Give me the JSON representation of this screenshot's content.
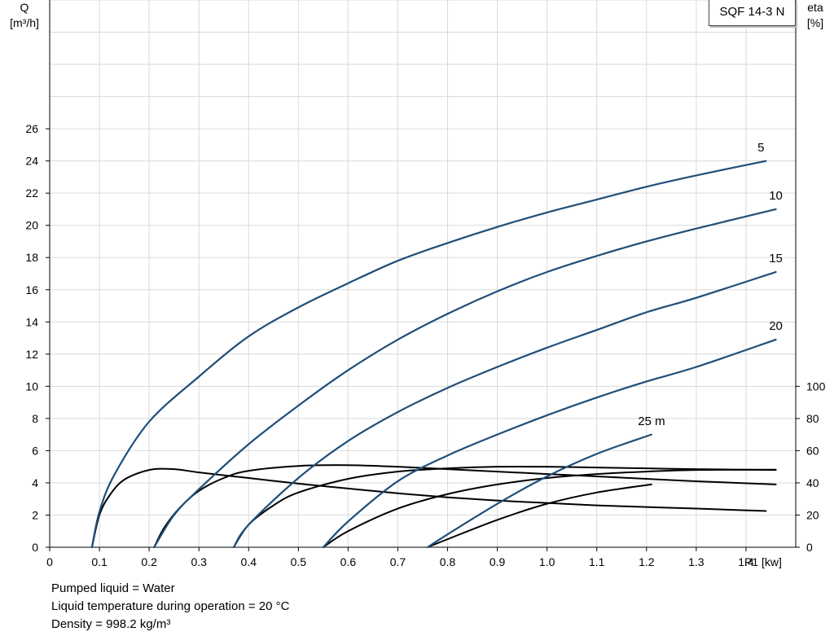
{
  "chart_data": {
    "type": "line",
    "title": "",
    "model": "SQF 14-3 N",
    "x_axis": {
      "label": "P1 [kw]",
      "range": [
        0,
        1.5
      ],
      "ticks": [
        0,
        0.1,
        0.2,
        0.3,
        0.4,
        0.5,
        0.6,
        0.7,
        0.8,
        0.9,
        1.0,
        1.1,
        1.2,
        1.3,
        1.4
      ],
      "tick_labels": [
        "0",
        "0.1",
        "0.2",
        "0.3",
        "0.4",
        "0.5",
        "0.6",
        "0.7",
        "0.8",
        "0.9",
        "1.0",
        "1.1",
        "1.2",
        "1.3",
        "1.4"
      ]
    },
    "y_left": {
      "label_line1": "Q",
      "label_line2": "[m³/h]",
      "range": [
        0,
        34
      ],
      "ticks": [
        0,
        2,
        4,
        6,
        8,
        10,
        12,
        14,
        16,
        18,
        20,
        22,
        24,
        26
      ],
      "tick_labels": [
        "0",
        "2",
        "4",
        "6",
        "8",
        "10",
        "12",
        "14",
        "16",
        "18",
        "20",
        "22",
        "24",
        "26"
      ]
    },
    "y_right": {
      "label_line1": "eta",
      "label_line2": "[%]",
      "range": [
        0,
        340
      ],
      "ticks": [
        0,
        20,
        40,
        60,
        80,
        100
      ],
      "tick_labels": [
        "0",
        "20",
        "40",
        "60",
        "80",
        "100"
      ]
    },
    "grid": true,
    "flow_series": [
      {
        "name": "5",
        "color": "#1f4e79",
        "points": [
          [
            0.085,
            0
          ],
          [
            0.1,
            2.2
          ],
          [
            0.13,
            4.5
          ],
          [
            0.2,
            7.8
          ],
          [
            0.3,
            10.6
          ],
          [
            0.4,
            13.1
          ],
          [
            0.5,
            14.9
          ],
          [
            0.6,
            16.4
          ],
          [
            0.7,
            17.8
          ],
          [
            0.8,
            18.9
          ],
          [
            0.9,
            19.9
          ],
          [
            1.0,
            20.8
          ],
          [
            1.1,
            21.6
          ],
          [
            1.2,
            22.4
          ],
          [
            1.3,
            23.1
          ],
          [
            1.44,
            24.0
          ]
        ],
        "label": "5",
        "label_at": [
          1.43,
          24.6
        ]
      },
      {
        "name": "10",
        "color": "#1f4e79",
        "points": [
          [
            0.21,
            0
          ],
          [
            0.25,
            2.0
          ],
          [
            0.3,
            3.6
          ],
          [
            0.4,
            6.4
          ],
          [
            0.5,
            8.8
          ],
          [
            0.6,
            11.0
          ],
          [
            0.7,
            12.9
          ],
          [
            0.8,
            14.5
          ],
          [
            0.9,
            15.9
          ],
          [
            1.0,
            17.1
          ],
          [
            1.1,
            18.1
          ],
          [
            1.2,
            19.0
          ],
          [
            1.3,
            19.8
          ],
          [
            1.46,
            21.0
          ]
        ],
        "label": "10",
        "label_at": [
          1.46,
          21.6
        ]
      },
      {
        "name": "15",
        "color": "#1f4e79",
        "points": [
          [
            0.37,
            0
          ],
          [
            0.4,
            1.4
          ],
          [
            0.5,
            4.3
          ],
          [
            0.6,
            6.6
          ],
          [
            0.7,
            8.4
          ],
          [
            0.8,
            9.9
          ],
          [
            0.9,
            11.2
          ],
          [
            1.0,
            12.4
          ],
          [
            1.1,
            13.5
          ],
          [
            1.2,
            14.6
          ],
          [
            1.3,
            15.5
          ],
          [
            1.46,
            17.1
          ]
        ],
        "label": "15",
        "label_at": [
          1.46,
          17.7
        ]
      },
      {
        "name": "20",
        "color": "#1f4e79",
        "points": [
          [
            0.55,
            0
          ],
          [
            0.6,
            1.6
          ],
          [
            0.7,
            4.1
          ],
          [
            0.8,
            5.7
          ],
          [
            0.9,
            7.0
          ],
          [
            1.0,
            8.2
          ],
          [
            1.1,
            9.3
          ],
          [
            1.2,
            10.3
          ],
          [
            1.3,
            11.2
          ],
          [
            1.46,
            12.9
          ]
        ],
        "label": "20",
        "label_at": [
          1.46,
          13.5
        ]
      },
      {
        "name": "25 m",
        "color": "#1f4e79",
        "points": [
          [
            0.76,
            0
          ],
          [
            0.8,
            0.8
          ],
          [
            0.9,
            2.7
          ],
          [
            1.0,
            4.4
          ],
          [
            1.1,
            5.8
          ],
          [
            1.21,
            7.0
          ]
        ],
        "label": "25 m",
        "label_at": [
          1.21,
          7.6
        ]
      }
    ],
    "efficiency_series": [
      {
        "name": "eta 5",
        "color": "#000000",
        "points": [
          [
            0.085,
            0
          ],
          [
            0.1,
            20
          ],
          [
            0.12,
            32
          ],
          [
            0.15,
            42
          ],
          [
            0.2,
            48
          ],
          [
            0.25,
            48.5
          ],
          [
            0.3,
            46.5
          ],
          [
            0.4,
            43
          ],
          [
            0.5,
            39.5
          ],
          [
            0.6,
            36.5
          ],
          [
            0.7,
            33.5
          ],
          [
            0.8,
            31
          ],
          [
            0.9,
            29
          ],
          [
            1.0,
            27.5
          ],
          [
            1.1,
            26
          ],
          [
            1.2,
            25
          ],
          [
            1.3,
            24
          ],
          [
            1.44,
            22.5
          ]
        ]
      },
      {
        "name": "eta 10",
        "color": "#000000",
        "points": [
          [
            0.21,
            0
          ],
          [
            0.23,
            12
          ],
          [
            0.26,
            24
          ],
          [
            0.3,
            35
          ],
          [
            0.35,
            43
          ],
          [
            0.4,
            47.5
          ],
          [
            0.5,
            50.5
          ],
          [
            0.6,
            51
          ],
          [
            0.7,
            50
          ],
          [
            0.8,
            48.5
          ],
          [
            0.9,
            47
          ],
          [
            1.0,
            45.5
          ],
          [
            1.1,
            44
          ],
          [
            1.2,
            42.5
          ],
          [
            1.3,
            41
          ],
          [
            1.46,
            39
          ]
        ]
      },
      {
        "name": "eta 15",
        "color": "#000000",
        "points": [
          [
            0.37,
            0
          ],
          [
            0.4,
            14
          ],
          [
            0.45,
            26
          ],
          [
            0.5,
            34
          ],
          [
            0.6,
            42.5
          ],
          [
            0.7,
            47
          ],
          [
            0.8,
            49
          ],
          [
            0.9,
            50
          ],
          [
            1.0,
            50
          ],
          [
            1.1,
            49.5
          ],
          [
            1.2,
            49
          ],
          [
            1.3,
            48.5
          ],
          [
            1.46,
            48
          ]
        ]
      },
      {
        "name": "eta 20",
        "color": "#000000",
        "points": [
          [
            0.55,
            0
          ],
          [
            0.6,
            10
          ],
          [
            0.7,
            24
          ],
          [
            0.8,
            33
          ],
          [
            0.9,
            39
          ],
          [
            1.0,
            43
          ],
          [
            1.1,
            45.5
          ],
          [
            1.2,
            47
          ],
          [
            1.3,
            48
          ],
          [
            1.46,
            48.2
          ]
        ]
      },
      {
        "name": "eta 25",
        "color": "#000000",
        "points": [
          [
            0.76,
            0
          ],
          [
            0.8,
            5
          ],
          [
            0.9,
            17
          ],
          [
            1.0,
            27
          ],
          [
            1.1,
            34
          ],
          [
            1.21,
            39
          ]
        ]
      }
    ]
  },
  "notes": [
    "Pumped liquid = Water",
    "Liquid temperature during operation = 20 °C",
    "Density = 998.2 kg/m³"
  ]
}
